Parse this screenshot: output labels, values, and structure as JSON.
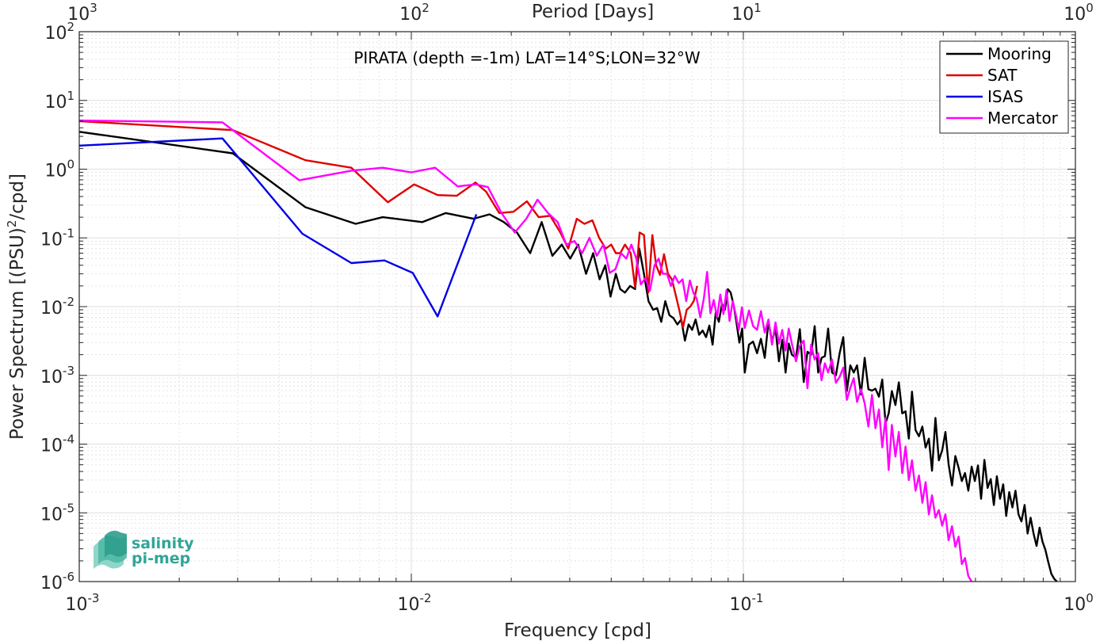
{
  "chart_data": {
    "type": "line",
    "title": "PIRATA (depth =-1m) LAT=14°S;LON=32°W",
    "xlabel": "Frequency [cpd]",
    "ylabel": "Power Spectrum [(PSU)^2/cpd]",
    "top_xlabel": "Period [Days]",
    "x_scale": "log",
    "y_scale": "log",
    "xlim": [
      0.001,
      1
    ],
    "ylim": [
      1e-06,
      100
    ],
    "grid": true,
    "legend_position": "top-right",
    "x_ticks": [
      {
        "value": 0.001,
        "base": "10",
        "exp": "-3"
      },
      {
        "value": 0.01,
        "base": "10",
        "exp": "-2"
      },
      {
        "value": 0.1,
        "base": "10",
        "exp": "-1"
      },
      {
        "value": 1,
        "base": "10",
        "exp": "0"
      }
    ],
    "top_ticks": [
      {
        "value": 0.001,
        "base": "10",
        "exp": "3"
      },
      {
        "value": 0.01,
        "base": "10",
        "exp": "2"
      },
      {
        "value": 0.1,
        "base": "10",
        "exp": "1"
      },
      {
        "value": 1,
        "base": "10",
        "exp": "0"
      }
    ],
    "y_ticks": [
      {
        "value": 100,
        "base": "10",
        "exp": "2"
      },
      {
        "value": 10,
        "base": "10",
        "exp": "1"
      },
      {
        "value": 1,
        "base": "10",
        "exp": "0"
      },
      {
        "value": 0.1,
        "base": "10",
        "exp": "-1"
      },
      {
        "value": 0.01,
        "base": "10",
        "exp": "-2"
      },
      {
        "value": 0.001,
        "base": "10",
        "exp": "-3"
      },
      {
        "value": 0.0001,
        "base": "10",
        "exp": "-4"
      },
      {
        "value": 1e-05,
        "base": "10",
        "exp": "-5"
      },
      {
        "value": 1e-06,
        "base": "10",
        "exp": "-6"
      }
    ],
    "series": [
      {
        "name": "Mooring",
        "color": "#000000",
        "x": [
          0.001,
          0.0029,
          0.0048,
          0.0068,
          0.0082,
          0.0108,
          0.0127,
          0.0154,
          0.0172,
          0.019,
          0.0208,
          0.0228,
          0.0247,
          0.0266,
          0.0284,
          0.0301,
          0.0318,
          0.0336,
          0.0353,
          0.0369,
          0.0384,
          0.0398,
          0.0413,
          0.0426,
          0.044,
          0.0456,
          0.0472,
          0.0486,
          0.0502,
          0.0518,
          0.0535,
          0.055,
          0.0566,
          0.0582,
          0.0599,
          0.0616,
          0.0633,
          0.065,
          0.0667,
          0.0684,
          0.0701,
          0.0718,
          0.0736,
          0.0754,
          0.0772,
          0.079,
          0.0808,
          0.0826,
          0.0844,
          0.0862,
          0.088,
          0.0898,
          0.0916,
          0.0935,
          0.0954,
          0.0973,
          0.0992,
          0.101,
          0.104,
          0.107,
          0.11,
          0.113,
          0.116,
          0.119,
          0.122,
          0.125,
          0.128,
          0.131,
          0.134,
          0.137,
          0.14,
          0.144,
          0.148,
          0.152,
          0.156,
          0.16,
          0.164,
          0.168,
          0.172,
          0.176,
          0.18,
          0.185,
          0.19,
          0.195,
          0.2,
          0.205,
          0.21,
          0.215,
          0.22,
          0.226,
          0.232,
          0.238,
          0.244,
          0.25,
          0.256,
          0.262,
          0.268,
          0.274,
          0.28,
          0.287,
          0.294,
          0.301,
          0.308,
          0.315,
          0.322,
          0.33,
          0.338,
          0.346,
          0.354,
          0.362,
          0.37,
          0.379,
          0.388,
          0.397,
          0.406,
          0.415,
          0.425,
          0.435,
          0.445,
          0.455,
          0.465,
          0.476,
          0.487,
          0.498,
          0.509,
          0.52,
          0.532,
          0.544,
          0.556,
          0.568,
          0.58,
          0.593,
          0.606,
          0.619,
          0.632,
          0.646,
          0.66,
          0.674,
          0.688,
          0.703,
          0.718,
          0.733,
          0.748,
          0.764,
          0.78,
          0.796,
          0.812,
          0.829,
          0.846,
          0.863,
          0.88
        ],
        "y": [
          3.5,
          1.7,
          0.28,
          0.16,
          0.2,
          0.17,
          0.23,
          0.19,
          0.22,
          0.17,
          0.12,
          0.06,
          0.17,
          0.055,
          0.08,
          0.05,
          0.08,
          0.03,
          0.06,
          0.025,
          0.04,
          0.014,
          0.03,
          0.018,
          0.016,
          0.02,
          0.018,
          0.07,
          0.03,
          0.012,
          0.009,
          0.0095,
          0.006,
          0.012,
          0.0075,
          0.0068,
          0.0055,
          0.0065,
          0.0032,
          0.0055,
          0.0046,
          0.0065,
          0.0039,
          0.0045,
          0.0036,
          0.0053,
          0.0028,
          0.0082,
          0.006,
          0.011,
          0.009,
          0.018,
          0.016,
          0.0105,
          0.0058,
          0.003,
          0.0048,
          0.0011,
          0.0028,
          0.0031,
          0.0021,
          0.0034,
          0.0018,
          0.0061,
          0.0031,
          0.0048,
          0.0016,
          0.0033,
          0.0011,
          0.0029,
          0.002,
          0.0018,
          0.0047,
          0.0008,
          0.0022,
          0.002,
          0.0052,
          0.0011,
          0.0018,
          0.0019,
          0.0048,
          0.0011,
          0.001,
          0.0021,
          0.0036,
          0.00059,
          0.0014,
          0.0011,
          0.0014,
          0.00053,
          0.0018,
          0.00063,
          0.0006,
          0.00064,
          0.00049,
          0.00087,
          0.0002,
          0.00028,
          0.00059,
          0.00037,
          0.00079,
          0.00028,
          0.0003,
          0.00012,
          0.00058,
          0.00016,
          0.00013,
          0.00018,
          8.9e-05,
          0.00012,
          4.1e-05,
          0.00024,
          5.8e-05,
          8.1e-05,
          0.00015,
          5.1e-05,
          2.5e-05,
          6.7e-05,
          4.5e-05,
          2.9e-05,
          3.8e-05,
          2.1e-05,
          4.7e-05,
          2.9e-05,
          4.9e-05,
          1.6e-05,
          5.9e-05,
          2.3e-05,
          3.1e-05,
          1.3e-05,
          3.4e-05,
          1.6e-05,
          2.6e-05,
          9e-06,
          2e-05,
          1.2e-05,
          2.1e-05,
          9.5e-06,
          7.5e-06,
          1.3e-05,
          5e-06,
          8.5e-06,
          5e-06,
          3.3e-06,
          6.1e-06,
          3.8e-06,
          2.9e-06,
          1.9e-06,
          1.3e-06,
          1.1e-06,
          1e-06
        ]
      },
      {
        "name": "SAT",
        "color": "#e00000",
        "x": [
          0.001,
          0.0029,
          0.0048,
          0.0066,
          0.0085,
          0.0102,
          0.012,
          0.0137,
          0.0156,
          0.0168,
          0.0184,
          0.0203,
          0.0223,
          0.0242,
          0.0262,
          0.0281,
          0.0297,
          0.0315,
          0.0332,
          0.0351,
          0.0368,
          0.0385,
          0.04,
          0.0413,
          0.0426,
          0.044,
          0.0458,
          0.0472,
          0.0487,
          0.0502,
          0.0517,
          0.0532,
          0.0546,
          0.0561,
          0.0577,
          0.0593,
          0.0609,
          0.0625,
          0.0641,
          0.0658,
          0.0675,
          0.0692,
          0.0709,
          0.0726
        ],
        "y": [
          5.0,
          3.7,
          1.35,
          1.05,
          0.33,
          0.6,
          0.42,
          0.41,
          0.64,
          0.47,
          0.23,
          0.24,
          0.34,
          0.2,
          0.21,
          0.12,
          0.07,
          0.19,
          0.16,
          0.18,
          0.1,
          0.07,
          0.08,
          0.06,
          0.06,
          0.08,
          0.06,
          0.019,
          0.12,
          0.11,
          0.016,
          0.11,
          0.04,
          0.029,
          0.058,
          0.03,
          0.025,
          0.015,
          0.009,
          0.005,
          0.009,
          0.01,
          0.012,
          0.02
        ]
      },
      {
        "name": "ISAS",
        "color": "#0000e6",
        "x": [
          0.001,
          0.0027,
          0.0047,
          0.0066,
          0.0083,
          0.0101,
          0.012,
          0.0157
        ],
        "y": [
          2.2,
          2.8,
          0.115,
          0.043,
          0.047,
          0.031,
          0.0072,
          0.22
        ]
      },
      {
        "name": "Mercator",
        "color": "#ff00ff",
        "x": [
          0.001,
          0.0027,
          0.0046,
          0.0066,
          0.0082,
          0.01,
          0.0118,
          0.0138,
          0.0156,
          0.017,
          0.0187,
          0.0205,
          0.0222,
          0.024,
          0.0258,
          0.0276,
          0.0293,
          0.031,
          0.0327,
          0.0344,
          0.0362,
          0.0379,
          0.0396,
          0.0412,
          0.0428,
          0.0444,
          0.046,
          0.0476,
          0.0491,
          0.0507,
          0.0523,
          0.054,
          0.0556,
          0.0572,
          0.0589,
          0.0605,
          0.0622,
          0.0639,
          0.0656,
          0.0673,
          0.069,
          0.0707,
          0.0724,
          0.0742,
          0.076,
          0.0778,
          0.0796,
          0.0814,
          0.0833,
          0.0852,
          0.0871,
          0.089,
          0.0909,
          0.0929,
          0.0949,
          0.0969,
          0.099,
          0.101,
          0.104,
          0.107,
          0.11,
          0.113,
          0.116,
          0.119,
          0.122,
          0.125,
          0.128,
          0.131,
          0.134,
          0.137,
          0.14,
          0.144,
          0.148,
          0.152,
          0.156,
          0.16,
          0.164,
          0.168,
          0.172,
          0.176,
          0.18,
          0.185,
          0.19,
          0.195,
          0.2,
          0.205,
          0.21,
          0.215,
          0.22,
          0.226,
          0.232,
          0.238,
          0.244,
          0.25,
          0.256,
          0.262,
          0.268,
          0.274,
          0.28,
          0.287,
          0.294,
          0.301,
          0.308,
          0.315,
          0.322,
          0.33,
          0.338,
          0.346,
          0.354,
          0.362,
          0.37,
          0.379,
          0.388,
          0.397,
          0.406,
          0.415,
          0.425,
          0.435,
          0.445,
          0.455,
          0.465,
          0.476,
          0.487
        ],
        "y": [
          5.1,
          4.8,
          0.69,
          0.95,
          1.05,
          0.9,
          1.05,
          0.56,
          0.6,
          0.55,
          0.23,
          0.12,
          0.19,
          0.36,
          0.23,
          0.17,
          0.08,
          0.09,
          0.06,
          0.1,
          0.055,
          0.08,
          0.031,
          0.035,
          0.06,
          0.05,
          0.08,
          0.05,
          0.021,
          0.026,
          0.017,
          0.04,
          0.05,
          0.03,
          0.03,
          0.02,
          0.028,
          0.022,
          0.025,
          0.012,
          0.024,
          0.016,
          0.013,
          0.007,
          0.013,
          0.032,
          0.008,
          0.0125,
          0.007,
          0.015,
          0.0078,
          0.0175,
          0.0062,
          0.012,
          0.0076,
          0.0046,
          0.0098,
          0.0049,
          0.0088,
          0.0052,
          0.0046,
          0.0086,
          0.0042,
          0.0065,
          0.0028,
          0.0059,
          0.0029,
          0.0046,
          0.0023,
          0.0048,
          0.0029,
          0.0016,
          0.0027,
          0.0032,
          0.00065,
          0.0028,
          0.0017,
          0.0021,
          0.00085,
          0.0015,
          0.0011,
          0.0017,
          0.00078,
          0.00095,
          0.0013,
          0.00044,
          0.00066,
          0.00091,
          0.00041,
          0.00063,
          0.00039,
          0.00018,
          0.00052,
          0.00017,
          0.00032,
          9e-05,
          0.00024,
          4.2e-05,
          0.00019,
          6.6e-05,
          0.00015,
          3.8e-05,
          9.2e-05,
          3e-05,
          5.8e-05,
          2.1e-05,
          3.5e-05,
          1.4e-05,
          2.8e-05,
          9.5e-06,
          1.8e-05,
          8.5e-06,
          1.1e-05,
          6.5e-06,
          9.5e-06,
          4e-06,
          6.4e-06,
          3.2e-06,
          4.5e-06,
          1.8e-06,
          2.2e-06,
          1.2e-06,
          1e-06
        ]
      }
    ]
  },
  "logo": {
    "line1": "salinity",
    "line2": "pi-mep"
  },
  "colors": {
    "axis": "#262626",
    "grid": "#dedede",
    "logo": "#2fa597"
  }
}
